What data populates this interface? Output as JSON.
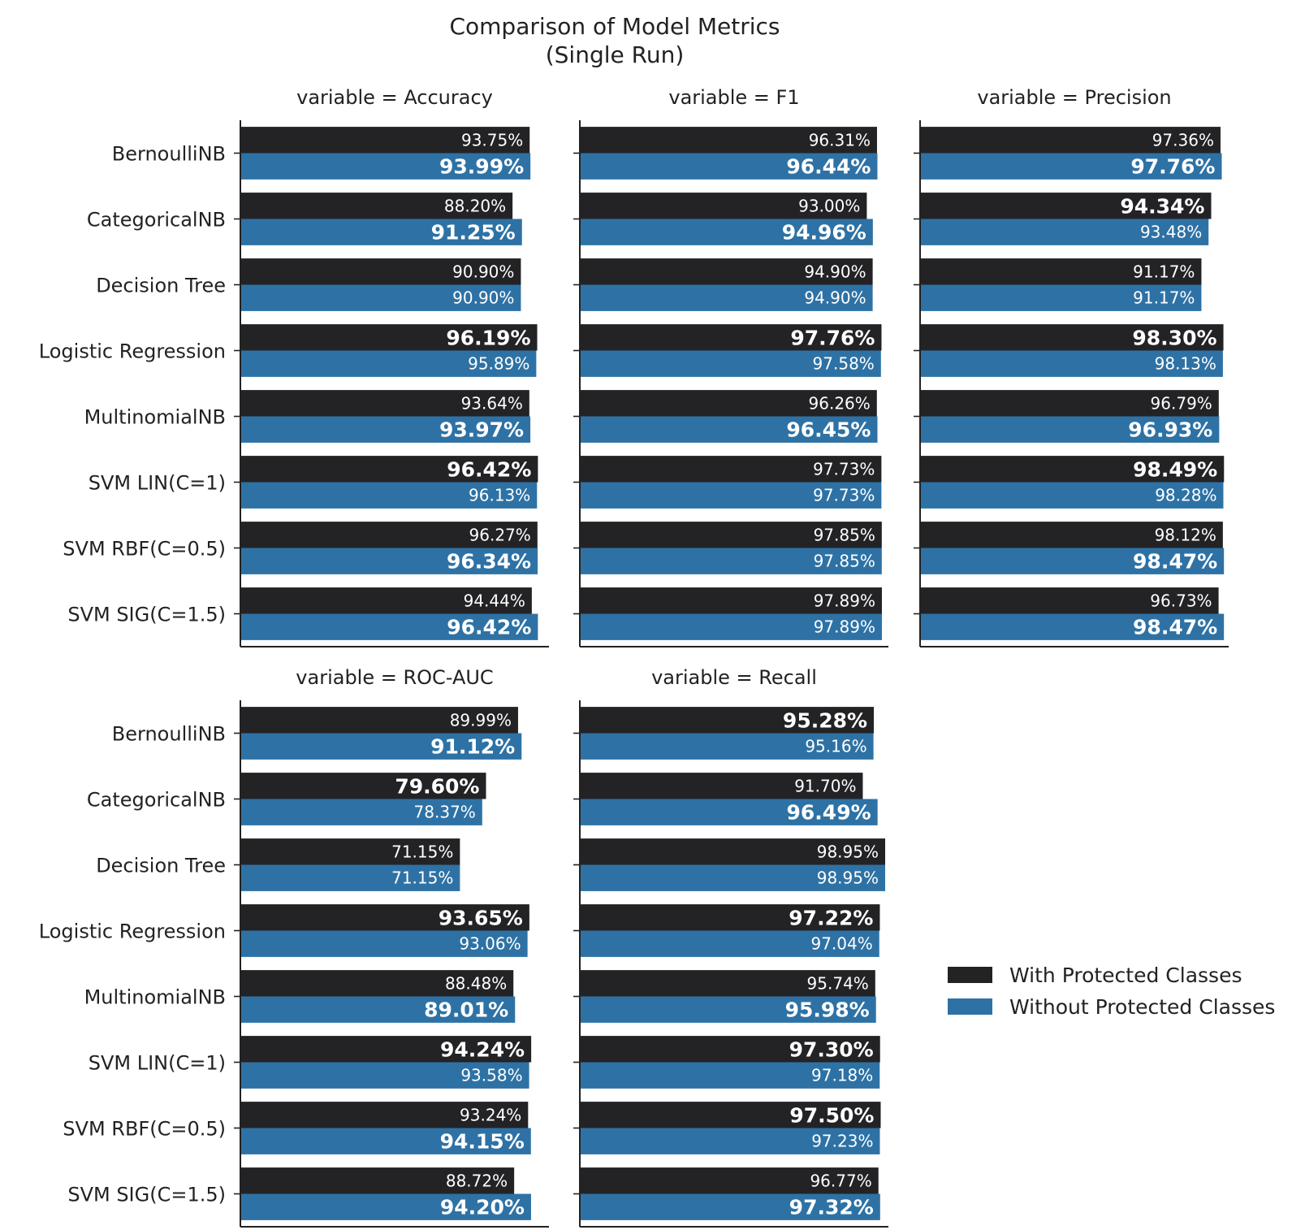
{
  "figure": {
    "title_line1": "Comparison of Model Metrics",
    "title_line2": "(Single Run)",
    "legend": [
      {
        "label": "With Protected Classes",
        "color": "#232326"
      },
      {
        "label": "Without Protected Classes",
        "color": "#2e72a5"
      }
    ],
    "legend_position": "right"
  },
  "chart_data": {
    "type": "bar",
    "orientation": "horizontal",
    "categories": [
      "BernoulliNB",
      "CategoricalNB",
      "Decision Tree",
      "Logistic Regression",
      "MultinomialNB",
      "SVM LIN(C=1)",
      "SVM RBF(C=0.5)",
      "SVM SIG(C=1.5)"
    ],
    "xlim": [
      0,
      100
    ],
    "grid": false,
    "series_names": [
      "With Protected Classes",
      "Without Protected Classes"
    ],
    "panels": [
      {
        "title": "variable = Accuracy",
        "series": [
          {
            "name": "With Protected Classes",
            "values": [
              93.75,
              88.2,
              90.9,
              96.19,
              93.64,
              96.42,
              96.27,
              94.44
            ],
            "labels": [
              "93.75%",
              "88.20%",
              "90.90%",
              "96.19%",
              "93.64%",
              "96.42%",
              "96.27%",
              "94.44%"
            ]
          },
          {
            "name": "Without Protected Classes",
            "values": [
              93.99,
              91.25,
              90.9,
              95.89,
              93.97,
              96.13,
              96.34,
              96.42
            ],
            "labels": [
              "93.99%",
              "91.25%",
              "90.90%",
              "95.89%",
              "93.97%",
              "96.13%",
              "96.34%",
              "96.42%"
            ]
          }
        ]
      },
      {
        "title": "variable = F1",
        "series": [
          {
            "name": "With Protected Classes",
            "values": [
              96.31,
              93.0,
              94.9,
              97.76,
              96.26,
              97.73,
              97.85,
              97.89
            ],
            "labels": [
              "96.31%",
              "93.00%",
              "94.90%",
              "97.76%",
              "96.26%",
              "97.73%",
              "97.85%",
              "97.89%"
            ]
          },
          {
            "name": "Without Protected Classes",
            "values": [
              96.44,
              94.96,
              94.9,
              97.58,
              96.45,
              97.73,
              97.85,
              97.89
            ],
            "labels": [
              "96.44%",
              "94.96%",
              "94.90%",
              "97.58%",
              "96.45%",
              "97.73%",
              "97.85%",
              "97.89%"
            ]
          }
        ]
      },
      {
        "title": "variable = Precision",
        "series": [
          {
            "name": "With Protected Classes",
            "values": [
              97.36,
              94.34,
              91.17,
              98.3,
              96.79,
              98.49,
              98.12,
              96.73
            ],
            "labels": [
              "97.36%",
              "94.34%",
              "91.17%",
              "98.30%",
              "96.79%",
              "98.49%",
              "98.12%",
              "96.73%"
            ]
          },
          {
            "name": "Without Protected Classes",
            "values": [
              97.76,
              93.48,
              91.17,
              98.13,
              96.93,
              98.28,
              98.47,
              98.47
            ],
            "labels": [
              "97.76%",
              "93.48%",
              "91.17%",
              "98.13%",
              "96.93%",
              "98.28%",
              "98.47%",
              "98.47%"
            ]
          }
        ]
      },
      {
        "title": "variable = ROC-AUC",
        "series": [
          {
            "name": "With Protected Classes",
            "values": [
              89.99,
              79.6,
              71.15,
              93.65,
              88.48,
              94.24,
              93.24,
              88.72
            ],
            "labels": [
              "89.99%",
              "79.60%",
              "71.15%",
              "93.65%",
              "88.48%",
              "94.24%",
              "93.24%",
              "88.72%"
            ]
          },
          {
            "name": "Without Protected Classes",
            "values": [
              91.12,
              78.37,
              71.15,
              93.06,
              89.01,
              93.58,
              94.15,
              94.2
            ],
            "labels": [
              "91.12%",
              "78.37%",
              "71.15%",
              "93.06%",
              "89.01%",
              "93.58%",
              "94.15%",
              "94.20%"
            ]
          }
        ]
      },
      {
        "title": "variable = Recall",
        "series": [
          {
            "name": "With Protected Classes",
            "values": [
              95.28,
              91.7,
              98.95,
              97.22,
              95.74,
              97.3,
              97.5,
              96.77
            ],
            "labels": [
              "95.28%",
              "91.70%",
              "98.95%",
              "97.22%",
              "95.74%",
              "97.30%",
              "97.50%",
              "96.77%"
            ]
          },
          {
            "name": "Without Protected Classes",
            "values": [
              95.16,
              96.49,
              98.95,
              97.04,
              95.98,
              97.18,
              97.23,
              97.32
            ],
            "labels": [
              "95.16%",
              "96.49%",
              "98.95%",
              "97.04%",
              "95.98%",
              "97.18%",
              "97.23%",
              "97.32%"
            ]
          }
        ]
      }
    ]
  }
}
